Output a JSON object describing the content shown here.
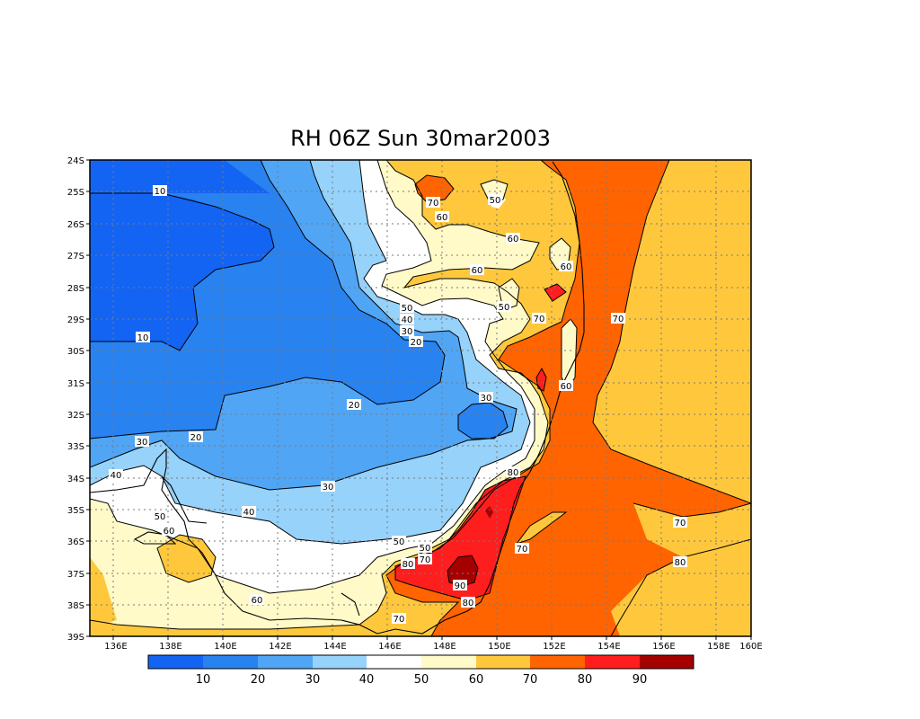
{
  "title": "RH 06Z Sun 30mar2003",
  "lat_ticks": [
    "24S",
    "25S",
    "26S",
    "27S",
    "28S",
    "29S",
    "30S",
    "31S",
    "32S",
    "33S",
    "34S",
    "35S",
    "36S",
    "37S",
    "38S",
    "39S"
  ],
  "lon_ticks": [
    "136E",
    "138E",
    "140E",
    "142E",
    "144E",
    "146E",
    "148E",
    "150E",
    "152E",
    "154E",
    "156E",
    "158E",
    "160E"
  ],
  "colorbar": {
    "colors": [
      "#1464f4",
      "#2882f0",
      "#50a5f5",
      "#96d2fa",
      "#ffffff",
      "#fffac8",
      "#ffc83c",
      "#ff6400",
      "#ff1e1e",
      "#a50000"
    ],
    "labels": [
      "10",
      "20",
      "30",
      "40",
      "50",
      "60",
      "70",
      "80",
      "90"
    ]
  },
  "contour_labels": [
    "10",
    "10",
    "20",
    "20",
    "20",
    "30",
    "30",
    "30",
    "30",
    "40",
    "40",
    "40",
    "50",
    "50",
    "50",
    "50",
    "50",
    "60",
    "60",
    "60",
    "60",
    "60",
    "60",
    "60",
    "70",
    "70",
    "70",
    "70",
    "70",
    "70",
    "70",
    "80",
    "80",
    "80",
    "90"
  ],
  "colors": {
    "c10": "#1464f4",
    "c20": "#2882f0",
    "c30": "#50a5f5",
    "c40": "#96d2fa",
    "c50": "#ffffff",
    "c60": "#fffac8",
    "c70": "#ffc83c",
    "c80": "#ff6400",
    "c90": "#ff1e1e",
    "c100": "#a50000"
  }
}
